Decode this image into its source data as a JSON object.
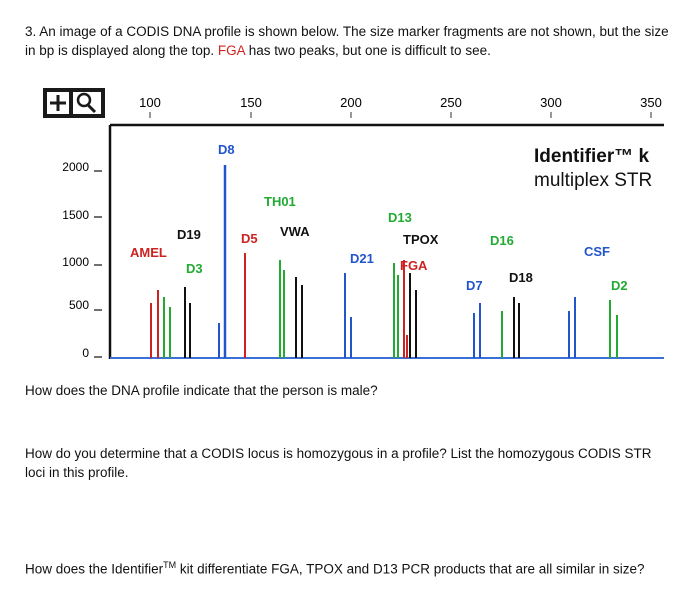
{
  "question": {
    "number": "3.",
    "intro_before": "An image of a CODIS DNA profile is shown below. The size marker fragments are not shown, but the size in bp is displayed along the top.",
    "intro_highlight": "FGA",
    "intro_after": "has two peaks, but one is difficult to see."
  },
  "figure": {
    "kit_title": "Identifier™ k",
    "kit_subtitle": "multiplex STR",
    "bp_ticks": [
      "100",
      "150",
      "200",
      "250",
      "300",
      "350"
    ],
    "rfu_ticks": [
      "2000",
      "1500",
      "1000",
      "500",
      "0"
    ],
    "loci": [
      {
        "name": "AMEL",
        "color": "#cc2222"
      },
      {
        "name": "D19",
        "color": "#111111"
      },
      {
        "name": "D3",
        "color": "#22aa33"
      },
      {
        "name": "D8",
        "color": "#2255cc"
      },
      {
        "name": "D5",
        "color": "#cc2222"
      },
      {
        "name": "TH01",
        "color": "#22aa33"
      },
      {
        "name": "VWA",
        "color": "#111111"
      },
      {
        "name": "D21",
        "color": "#2255cc"
      },
      {
        "name": "D13",
        "color": "#22aa33"
      },
      {
        "name": "TPOX",
        "color": "#111111"
      },
      {
        "name": "FGA",
        "color": "#cc2222"
      },
      {
        "name": "D7",
        "color": "#2255cc"
      },
      {
        "name": "D16",
        "color": "#22aa33"
      },
      {
        "name": "D18",
        "color": "#111111"
      },
      {
        "name": "CSF",
        "color": "#2255cc"
      },
      {
        "name": "D2",
        "color": "#22aa33"
      }
    ],
    "colors": {
      "blue": "#2255cc",
      "green": "#22aa33",
      "black": "#111111",
      "red": "#cc2222",
      "baseline": "#3a6fd8"
    }
  },
  "questions": {
    "q1": "How does the DNA profile indicate that the person is male?",
    "q2": "How do you determine that a CODIS locus is homozygous in a profile? List the homozygous CODIS STR loci in this profile.",
    "q3_before": "How does the Identifier",
    "q3_super": "TM",
    "q3_after": " kit differentiate FGA, TPOX and D13 PCR products that are all similar in size?"
  }
}
